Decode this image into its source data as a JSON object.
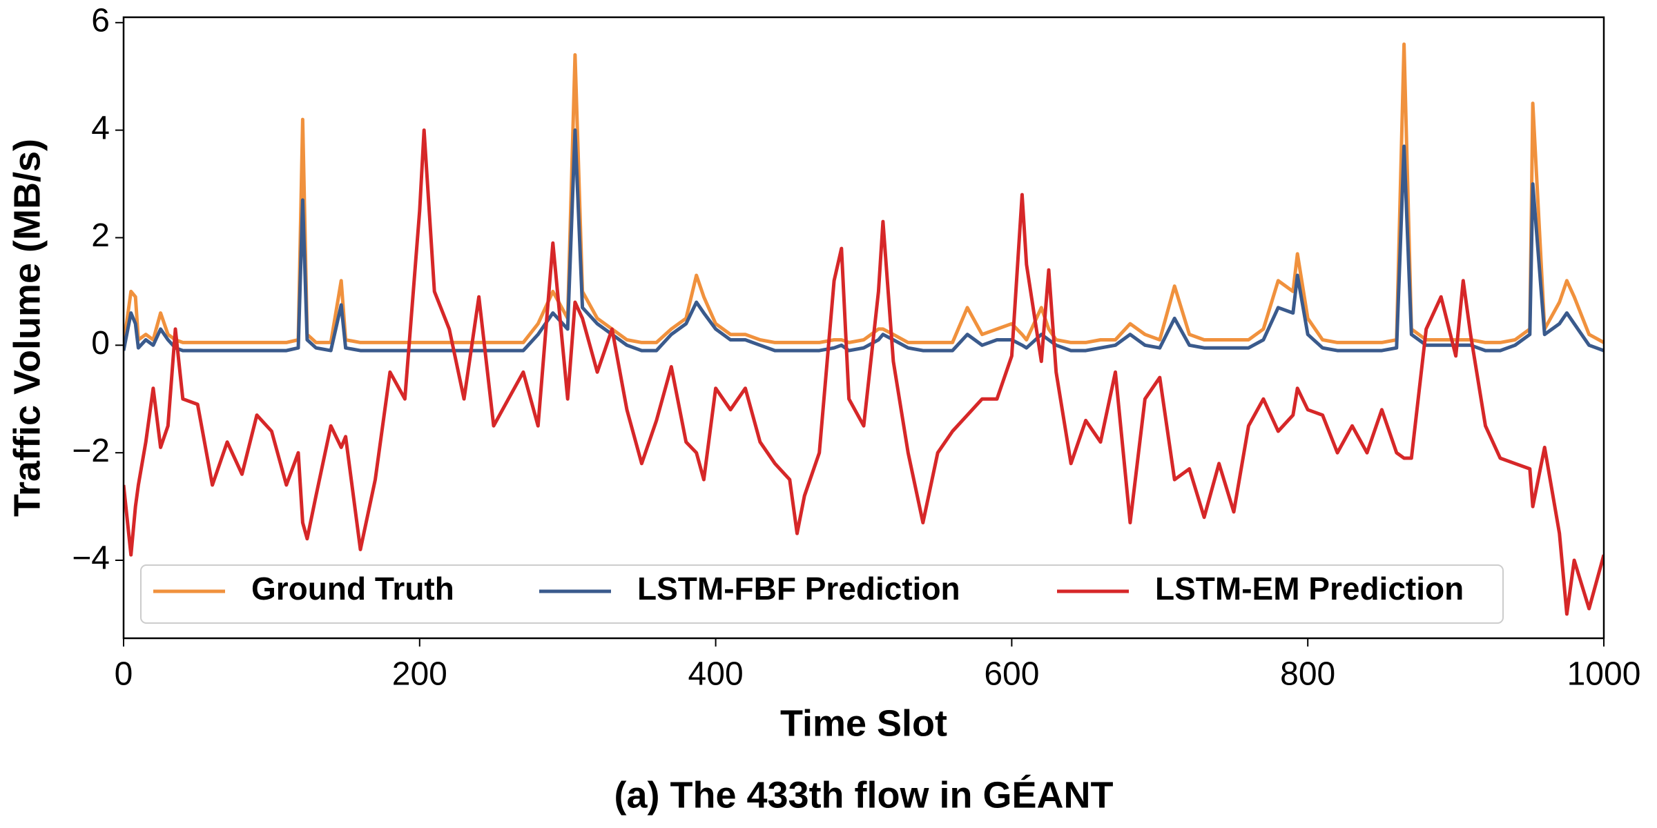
{
  "chart_data": {
    "type": "line",
    "title": "(a) The 433th flow in GÉANT",
    "xlabel": "Time Slot",
    "ylabel": "Traffic Volume (MB/s)",
    "x": [
      0,
      5,
      8,
      10,
      15,
      20,
      25,
      30,
      35,
      40,
      50,
      60,
      70,
      80,
      90,
      100,
      110,
      118,
      121,
      124,
      130,
      140,
      147,
      150,
      160,
      170,
      180,
      190,
      200,
      203,
      210,
      220,
      230,
      240,
      250,
      260,
      270,
      280,
      290,
      300,
      305,
      310,
      320,
      330,
      340,
      350,
      360,
      370,
      380,
      387,
      392,
      400,
      410,
      420,
      430,
      440,
      450,
      455,
      460,
      470,
      480,
      485,
      490,
      500,
      510,
      513,
      520,
      530,
      540,
      550,
      560,
      570,
      580,
      590,
      600,
      607,
      610,
      620,
      625,
      630,
      640,
      650,
      660,
      670,
      680,
      690,
      700,
      710,
      720,
      730,
      740,
      750,
      760,
      770,
      780,
      790,
      793,
      800,
      810,
      820,
      830,
      840,
      850,
      860,
      865,
      870,
      880,
      890,
      900,
      905,
      910,
      920,
      930,
      940,
      950,
      952,
      960,
      970,
      975,
      980,
      990,
      1000
    ],
    "series": [
      {
        "name": "Ground Truth",
        "color": "#f0913d",
        "values": [
          0.0,
          1.0,
          0.9,
          0.1,
          0.2,
          0.1,
          0.6,
          0.2,
          0.1,
          0.05,
          0.05,
          0.05,
          0.05,
          0.05,
          0.05,
          0.05,
          0.05,
          0.1,
          4.2,
          0.2,
          0.05,
          0.05,
          1.2,
          0.1,
          0.05,
          0.05,
          0.05,
          0.05,
          0.05,
          0.05,
          0.05,
          0.05,
          0.05,
          0.05,
          0.05,
          0.05,
          0.05,
          0.4,
          1.0,
          0.5,
          5.4,
          1.0,
          0.5,
          0.3,
          0.1,
          0.05,
          0.05,
          0.3,
          0.5,
          1.3,
          0.9,
          0.4,
          0.2,
          0.2,
          0.1,
          0.05,
          0.05,
          0.05,
          0.05,
          0.05,
          0.1,
          0.1,
          0.05,
          0.1,
          0.3,
          0.3,
          0.2,
          0.05,
          0.05,
          0.05,
          0.05,
          0.7,
          0.2,
          0.3,
          0.4,
          0.2,
          0.1,
          0.7,
          0.3,
          0.1,
          0.05,
          0.05,
          0.1,
          0.1,
          0.4,
          0.2,
          0.1,
          1.1,
          0.2,
          0.1,
          0.1,
          0.1,
          0.1,
          0.3,
          1.2,
          1.0,
          1.7,
          0.5,
          0.1,
          0.05,
          0.05,
          0.05,
          0.05,
          0.1,
          5.6,
          0.3,
          0.1,
          0.1,
          0.1,
          0.1,
          0.1,
          0.05,
          0.05,
          0.1,
          0.3,
          4.5,
          0.3,
          0.8,
          1.2,
          0.9,
          0.2,
          0.05
        ]
      },
      {
        "name": "LSTM-FBF Prediction",
        "color": "#3a5a8c",
        "values": [
          -0.1,
          0.6,
          0.4,
          -0.05,
          0.1,
          0.0,
          0.3,
          0.1,
          -0.05,
          -0.1,
          -0.1,
          -0.1,
          -0.1,
          -0.1,
          -0.1,
          -0.1,
          -0.1,
          -0.05,
          2.7,
          0.1,
          -0.05,
          -0.1,
          0.75,
          -0.05,
          -0.1,
          -0.1,
          -0.1,
          -0.1,
          -0.1,
          -0.1,
          -0.1,
          -0.1,
          -0.1,
          -0.1,
          -0.1,
          -0.1,
          -0.1,
          0.2,
          0.6,
          0.3,
          4.0,
          0.7,
          0.4,
          0.2,
          0.0,
          -0.1,
          -0.1,
          0.2,
          0.4,
          0.8,
          0.6,
          0.3,
          0.1,
          0.1,
          0.0,
          -0.1,
          -0.1,
          -0.1,
          -0.1,
          -0.1,
          -0.05,
          0.0,
          -0.1,
          -0.05,
          0.1,
          0.2,
          0.1,
          -0.05,
          -0.1,
          -0.1,
          -0.1,
          0.2,
          0.0,
          0.1,
          0.1,
          0.0,
          -0.05,
          0.2,
          0.1,
          0.0,
          -0.1,
          -0.1,
          -0.05,
          0.0,
          0.2,
          0.0,
          -0.05,
          0.5,
          0.0,
          -0.05,
          -0.05,
          -0.05,
          -0.05,
          0.1,
          0.7,
          0.6,
          1.3,
          0.2,
          -0.05,
          -0.1,
          -0.1,
          -0.1,
          -0.1,
          -0.05,
          3.7,
          0.2,
          0.0,
          0.0,
          0.0,
          0.0,
          0.0,
          -0.1,
          -0.1,
          0.0,
          0.2,
          3.0,
          0.2,
          0.4,
          0.6,
          0.4,
          0.0,
          -0.1
        ]
      },
      {
        "name": "LSTM-EM Prediction",
        "color": "#d62728",
        "values": [
          -2.6,
          -3.9,
          -3.0,
          -2.6,
          -1.8,
          -0.8,
          -1.9,
          -1.5,
          0.3,
          -1.0,
          -1.1,
          -2.6,
          -1.8,
          -2.4,
          -1.3,
          -1.6,
          -2.6,
          -2.0,
          -3.3,
          -3.6,
          -2.8,
          -1.5,
          -1.9,
          -1.7,
          -3.8,
          -2.5,
          -0.5,
          -1.0,
          2.5,
          4.0,
          1.0,
          0.3,
          -1.0,
          0.9,
          -1.5,
          -1.0,
          -0.5,
          -1.5,
          1.9,
          -1.0,
          0.8,
          0.5,
          -0.5,
          0.3,
          -1.2,
          -2.2,
          -1.4,
          -0.4,
          -1.8,
          -2.0,
          -2.5,
          -0.8,
          -1.2,
          -0.8,
          -1.8,
          -2.2,
          -2.5,
          -3.5,
          -2.8,
          -2.0,
          1.2,
          1.8,
          -1.0,
          -1.5,
          1.0,
          2.3,
          -0.3,
          -2.0,
          -3.3,
          -2.0,
          -1.6,
          -1.3,
          -1.0,
          -1.0,
          -0.2,
          2.8,
          1.5,
          -0.3,
          1.4,
          -0.5,
          -2.2,
          -1.4,
          -1.8,
          -0.5,
          -3.3,
          -1.0,
          -0.6,
          -2.5,
          -2.3,
          -3.2,
          -2.2,
          -3.1,
          -1.5,
          -1.0,
          -1.6,
          -1.3,
          -0.8,
          -1.2,
          -1.3,
          -2.0,
          -1.5,
          -2.0,
          -1.2,
          -2.0,
          -2.1,
          -2.1,
          0.3,
          0.9,
          -0.2,
          1.2,
          0.2,
          -1.5,
          -2.1,
          -2.2,
          -2.3,
          -3.0,
          -1.9,
          -3.5,
          -5.0,
          -4.0,
          -4.9,
          -3.9
        ]
      }
    ],
    "xlim": [
      0,
      1000
    ],
    "xticks": [
      0,
      200,
      400,
      600,
      800,
      1000
    ],
    "ylim": [
      -5.45,
      6.1
    ],
    "yticks": [
      {
        "value": -4,
        "label": "−4"
      },
      {
        "value": -2,
        "label": "−2"
      },
      0,
      2,
      4,
      6
    ],
    "grid": false,
    "legend": "lower center"
  }
}
